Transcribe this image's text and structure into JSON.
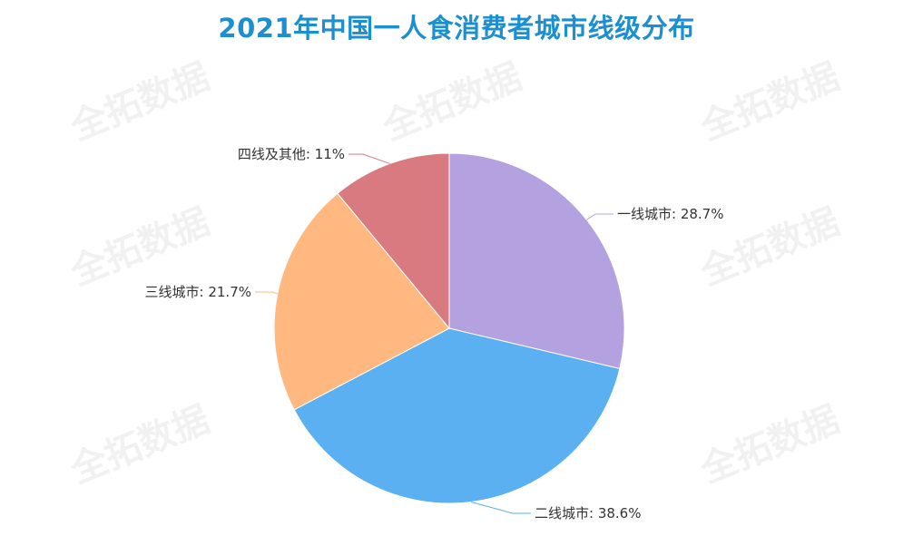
{
  "watermark": "全拓数据",
  "chart_data": {
    "type": "pie",
    "title": "2021年中国一人食消费者城市线级分布",
    "series": [
      {
        "name": "一线城市",
        "value": 28.7,
        "label": "一线城市: 28.7%",
        "color": "#b4a1e0"
      },
      {
        "name": "二线城市",
        "value": 38.6,
        "label": "二线城市: 38.6%",
        "color": "#5ab0f0"
      },
      {
        "name": "三线城市",
        "value": 21.7,
        "label": "三线城市: 21.7%",
        "color": "#ffb980"
      },
      {
        "name": "四线及其他",
        "value": 11,
        "label": "四线及其他: 11%",
        "color": "#d87a80"
      }
    ],
    "legend": "none"
  }
}
